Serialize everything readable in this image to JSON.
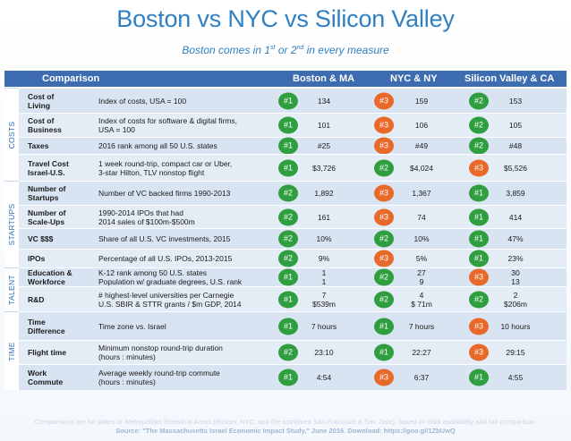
{
  "title": "Boston vs NYC vs Silicon Valley",
  "subtitle": {
    "before": "Boston comes in 1",
    "sup1": "st",
    "mid": " or 2",
    "sup2": "nd",
    "after": " in every measure"
  },
  "header": {
    "comparison": "Comparison",
    "boston": "Boston & MA",
    "nyc": "NYC & NY",
    "sv": "Silicon Valley & CA"
  },
  "rank_colors": {
    "#1": "#2e9e3c",
    "#2": "#3d9f45",
    "#3": "#e56b2c"
  },
  "sections": [
    {
      "label": "COSTS"
    },
    {
      "label": "STARTUPS"
    },
    {
      "label": "TALENT"
    },
    {
      "label": "TIME"
    }
  ],
  "rows": [
    {
      "metric": "Cost of\nLiving",
      "desc": "Index of costs, USA = 100",
      "boston": {
        "rank": "#1",
        "value": "134"
      },
      "nyc": {
        "rank": "#3",
        "value": "159"
      },
      "sv": {
        "rank": "#2",
        "value": "153"
      }
    },
    {
      "metric": "Cost of\nBusiness",
      "desc": "Index of costs for software & digital firms,\nUSA = 100",
      "boston": {
        "rank": "#1",
        "value": "101"
      },
      "nyc": {
        "rank": "#3",
        "value": "106"
      },
      "sv": {
        "rank": "#2",
        "value": "105"
      }
    },
    {
      "metric": "Taxes",
      "desc": "2016 rank among all 50 U.S. states",
      "boston": {
        "rank": "#1",
        "value": "#25"
      },
      "nyc": {
        "rank": "#3",
        "value": "#49"
      },
      "sv": {
        "rank": "#2",
        "value": "#48"
      }
    },
    {
      "metric": "Travel Cost\nIsrael-U.S.",
      "desc": "1 week round-trip, compact car or Uber,\n3-star Hilton, TLV nonstop flight",
      "boston": {
        "rank": "#1",
        "value": "$3,726"
      },
      "nyc": {
        "rank": "#2",
        "value": "$4,024"
      },
      "sv": {
        "rank": "#3",
        "value": "$5,526"
      }
    },
    {
      "metric": "Number of\nStartups",
      "desc": "Number of VC backed firms 1990-2013",
      "boston": {
        "rank": "#2",
        "value": "1,892"
      },
      "nyc": {
        "rank": "#3",
        "value": "1,367"
      },
      "sv": {
        "rank": "#1",
        "value": "3,859"
      }
    },
    {
      "metric": "Number of\nScale-Ups",
      "desc": "1990-2014 IPOs that had\n2014 sales of $100m-$500m",
      "boston": {
        "rank": "#2",
        "value": "161"
      },
      "nyc": {
        "rank": "#3",
        "value": "74"
      },
      "sv": {
        "rank": "#1",
        "value": "414"
      }
    },
    {
      "metric": "VC $$$",
      "desc": "Share of all U.S. VC investments, 2015",
      "boston": {
        "rank": "#2",
        "value": "10%"
      },
      "nyc": {
        "rank": "#2",
        "value": "10%"
      },
      "sv": {
        "rank": "#1",
        "value": "47%"
      }
    },
    {
      "metric": "IPOs",
      "desc": "Percentage of all U.S. IPOs, 2013-2015",
      "boston": {
        "rank": "#2",
        "value": "9%"
      },
      "nyc": {
        "rank": "#3",
        "value": "5%"
      },
      "sv": {
        "rank": "#1",
        "value": "23%"
      }
    },
    {
      "metric": "Education &\nWorkforce",
      "desc": "K-12 rank among 50 U.S. states\nPopulation w/ graduate degrees, U.S. rank",
      "boston": {
        "rank": "#1",
        "value": "1\n1"
      },
      "nyc": {
        "rank": "#2",
        "value": "27\n9"
      },
      "sv": {
        "rank": "#3",
        "value": "30\n13"
      }
    },
    {
      "metric": "R&D",
      "desc": "# highest-level universities per Carnegie\nU.S. SBIR & STTR grants / $m GDP, 2014",
      "boston": {
        "rank": "#1",
        "value": "7\n$539m"
      },
      "nyc": {
        "rank": "#2",
        "value": "4\n$ 71m"
      },
      "sv": {
        "rank": "#2",
        "value": "2\n$206m"
      }
    },
    {
      "metric": "Time\nDifference",
      "desc": "Time zone vs. Israel",
      "boston": {
        "rank": "#1",
        "value": "7 hours"
      },
      "nyc": {
        "rank": "#1",
        "value": "7 hours"
      },
      "sv": {
        "rank": "#3",
        "value": "10 hours"
      }
    },
    {
      "metric": "Flight time",
      "desc": "Minimum nonstop round-trip duration\n(hours : minutes)",
      "boston": {
        "rank": "#2",
        "value": "23:10"
      },
      "nyc": {
        "rank": "#1",
        "value": "22:27"
      },
      "sv": {
        "rank": "#3",
        "value": "29:15"
      }
    },
    {
      "metric": "Work\nCommute",
      "desc": "Average weekly round-trip commute\n(hours : minutes)",
      "boston": {
        "rank": "#1",
        "value": "4:54"
      },
      "nyc": {
        "rank": "#3",
        "value": "6:37"
      },
      "sv": {
        "rank": "#1",
        "value": "4:55"
      }
    }
  ],
  "footnote": "Comparisons are for states or Metropolitan Statistical Areas (Boston, NYC, and the combined San Francisco & San Jose), based on data availability and fair comparison.",
  "source": "Source: \"The Massachusetts Israel Economic Impact Study,\" June 2016.  Download: https://goo.gl/1ZbUwQ"
}
